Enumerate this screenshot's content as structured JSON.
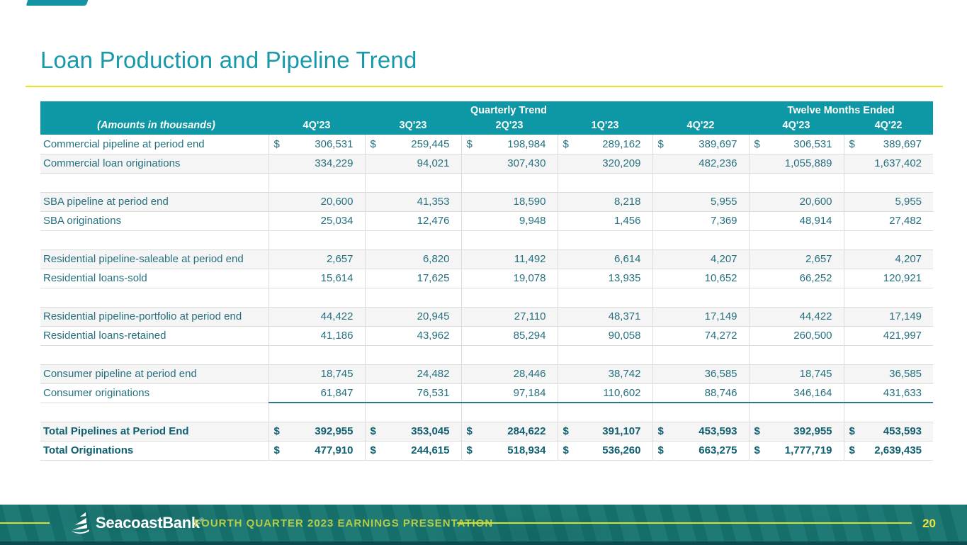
{
  "title": "Loan Production and Pipeline Trend",
  "colors": {
    "title_teal": "#1899a9",
    "header_teal": "#0e97a5",
    "body_text_teal": "#26707f",
    "total_text_teal": "#0e5f70",
    "accent_yellow": "#e3e22b",
    "footer_bar_teal": "#187672",
    "footer_caption_green": "#b5cc43"
  },
  "table": {
    "note": "(Amounts in thousands)",
    "groups": [
      {
        "label": "Quarterly Trend",
        "span": 5
      },
      {
        "label": "Twelve Months Ended",
        "span": 2
      }
    ],
    "columns": [
      "4Q'23",
      "3Q'23",
      "2Q'23",
      "1Q'23",
      "4Q'22",
      "4Q'23",
      "4Q'22"
    ],
    "currency_symbol": "$",
    "rows": [
      {
        "label": "Commercial pipeline at period end",
        "dollar": true,
        "values": [
          "306,531",
          "259,445",
          "198,984",
          "289,162",
          "389,697",
          "306,531",
          "389,697"
        ]
      },
      {
        "label": "Commercial loan originations",
        "shaded": true,
        "values": [
          "334,229",
          "94,021",
          "307,430",
          "320,209",
          "482,236",
          "1,055,889",
          "1,637,402"
        ]
      },
      {
        "spacer": true
      },
      {
        "label": "SBA pipeline at period end",
        "shaded": true,
        "values": [
          "20,600",
          "41,353",
          "18,590",
          "8,218",
          "5,955",
          "20,600",
          "5,955"
        ]
      },
      {
        "label": "SBA originations",
        "values": [
          "25,034",
          "12,476",
          "9,948",
          "1,456",
          "7,369",
          "48,914",
          "27,482"
        ]
      },
      {
        "spacer": true
      },
      {
        "label": "Residential pipeline-saleable at period end",
        "shaded": true,
        "values": [
          "2,657",
          "6,820",
          "11,492",
          "6,614",
          "4,207",
          "2,657",
          "4,207"
        ]
      },
      {
        "label": "Residential loans-sold",
        "values": [
          "15,614",
          "17,625",
          "19,078",
          "13,935",
          "10,652",
          "66,252",
          "120,921"
        ]
      },
      {
        "spacer": true
      },
      {
        "label": "Residential pipeline-portfolio at period end",
        "shaded": true,
        "values": [
          "44,422",
          "20,945",
          "27,110",
          "48,371",
          "17,149",
          "44,422",
          "17,149"
        ]
      },
      {
        "label": "Residential loans-retained",
        "values": [
          "41,186",
          "43,962",
          "85,294",
          "90,058",
          "74,272",
          "260,500",
          "421,997"
        ]
      },
      {
        "spacer": true
      },
      {
        "label": "Consumer pipeline at period end",
        "shaded": true,
        "values": [
          "18,745",
          "24,482",
          "28,446",
          "38,742",
          "36,585",
          "18,745",
          "36,585"
        ]
      },
      {
        "label": "Consumer originations",
        "underline": true,
        "values": [
          "61,847",
          "76,531",
          "97,184",
          "110,602",
          "88,746",
          "346,164",
          "431,633"
        ]
      },
      {
        "spacer": true
      },
      {
        "label": "Total Pipelines at Period End",
        "bold": true,
        "dollar": true,
        "shaded": true,
        "values": [
          "392,955",
          "353,045",
          "284,622",
          "391,107",
          "453,593",
          "392,955",
          "453,593"
        ]
      },
      {
        "label": "Total Originations",
        "bold": true,
        "dollar": true,
        "values": [
          "477,910",
          "244,615",
          "518,934",
          "536,260",
          "663,275",
          "1,777,719",
          "2,639,435"
        ]
      }
    ]
  },
  "footer": {
    "brand": "SeacoastBank",
    "reg_mark": "®",
    "caption": "FOURTH QUARTER 2023 EARNINGS PRESENTATION",
    "page_number": "20"
  }
}
